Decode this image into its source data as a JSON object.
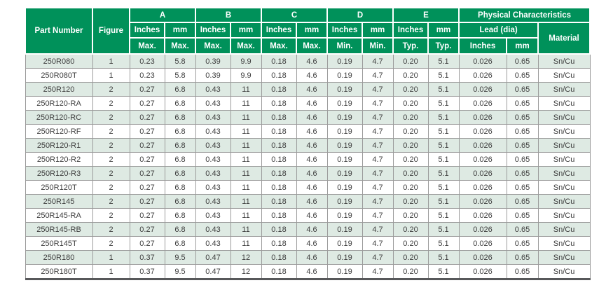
{
  "colors": {
    "header_green": "#00915a",
    "header_text": "#ffffff",
    "row_tint": "#deeae3",
    "row_white": "#ffffff",
    "data_text": "#3d3d3d",
    "grid_line": "#9b9b9b",
    "bottom_border": "#57585a"
  },
  "header": {
    "part_number": "Part Number",
    "figure": "Figure",
    "groups": [
      {
        "label": "A",
        "sub": [
          "Inches",
          "mm"
        ],
        "spec": [
          "Max.",
          "Max."
        ]
      },
      {
        "label": "B",
        "sub": [
          "Inches",
          "mm"
        ],
        "spec": [
          "Max.",
          "Max."
        ]
      },
      {
        "label": "C",
        "sub": [
          "Inches",
          "mm"
        ],
        "spec": [
          "Max.",
          "Max."
        ]
      },
      {
        "label": "D",
        "sub": [
          "Inches",
          "mm"
        ],
        "spec": [
          "Min.",
          "Min."
        ]
      },
      {
        "label": "E",
        "sub": [
          "Inches",
          "mm"
        ],
        "spec": [
          "Typ.",
          "Typ."
        ]
      }
    ],
    "physical": {
      "label": "Physical Characteristics",
      "lead": "Lead (dia)",
      "lead_sub": [
        "Inches",
        "mm"
      ],
      "material": "Material"
    }
  },
  "rows": [
    {
      "part": "250R080",
      "figure": "1",
      "values": [
        "0.23",
        "5.8",
        "0.39",
        "9.9",
        "0.18",
        "4.6",
        "0.19",
        "4.7",
        "0.20",
        "5.1",
        "0.026",
        "0.65",
        "Sn/Cu"
      ]
    },
    {
      "part": "250R080T",
      "figure": "1",
      "values": [
        "0.23",
        "5.8",
        "0.39",
        "9.9",
        "0.18",
        "4.6",
        "0.19",
        "4.7",
        "0.20",
        "5.1",
        "0.026",
        "0.65",
        "Sn/Cu"
      ]
    },
    {
      "part": "250R120",
      "figure": "2",
      "values": [
        "0.27",
        "6.8",
        "0.43",
        "11",
        "0.18",
        "4.6",
        "0.19",
        "4.7",
        "0.20",
        "5.1",
        "0.026",
        "0.65",
        "Sn/Cu"
      ]
    },
    {
      "part": "250R120-RA",
      "figure": "2",
      "values": [
        "0.27",
        "6.8",
        "0.43",
        "11",
        "0.18",
        "4.6",
        "0.19",
        "4.7",
        "0.20",
        "5.1",
        "0.026",
        "0.65",
        "Sn/Cu"
      ]
    },
    {
      "part": "250R120-RC",
      "figure": "2",
      "values": [
        "0.27",
        "6.8",
        "0.43",
        "11",
        "0.18",
        "4.6",
        "0.19",
        "4.7",
        "0.20",
        "5.1",
        "0.026",
        "0.65",
        "Sn/Cu"
      ]
    },
    {
      "part": "250R120-RF",
      "figure": "2",
      "values": [
        "0.27",
        "6.8",
        "0.43",
        "11",
        "0.18",
        "4.6",
        "0.19",
        "4.7",
        "0.20",
        "5.1",
        "0.026",
        "0.65",
        "Sn/Cu"
      ]
    },
    {
      "part": "250R120-R1",
      "figure": "2",
      "values": [
        "0.27",
        "6.8",
        "0.43",
        "11",
        "0.18",
        "4.6",
        "0.19",
        "4.7",
        "0.20",
        "5.1",
        "0.026",
        "0.65",
        "Sn/Cu"
      ]
    },
    {
      "part": "250R120-R2",
      "figure": "2",
      "values": [
        "0.27",
        "6.8",
        "0.43",
        "11",
        "0.18",
        "4.6",
        "0.19",
        "4.7",
        "0.20",
        "5.1",
        "0.026",
        "0.65",
        "Sn/Cu"
      ]
    },
    {
      "part": "250R120-R3",
      "figure": "2",
      "values": [
        "0.27",
        "6.8",
        "0.43",
        "11",
        "0.18",
        "4.6",
        "0.19",
        "4.7",
        "0.20",
        "5.1",
        "0.026",
        "0.65",
        "Sn/Cu"
      ]
    },
    {
      "part": "250R120T",
      "figure": "2",
      "values": [
        "0.27",
        "6.8",
        "0.43",
        "11",
        "0.18",
        "4.6",
        "0.19",
        "4.7",
        "0.20",
        "5.1",
        "0.026",
        "0.65",
        "Sn/Cu"
      ]
    },
    {
      "part": "250R145",
      "figure": "2",
      "values": [
        "0.27",
        "6.8",
        "0.43",
        "11",
        "0.18",
        "4.6",
        "0.19",
        "4.7",
        "0.20",
        "5.1",
        "0.026",
        "0.65",
        "Sn/Cu"
      ]
    },
    {
      "part": "250R145-RA",
      "figure": "2",
      "values": [
        "0.27",
        "6.8",
        "0.43",
        "11",
        "0.18",
        "4.6",
        "0.19",
        "4.7",
        "0.20",
        "5.1",
        "0.026",
        "0.65",
        "Sn/Cu"
      ]
    },
    {
      "part": "250R145-RB",
      "figure": "2",
      "values": [
        "0.27",
        "6.8",
        "0.43",
        "11",
        "0.18",
        "4.6",
        "0.19",
        "4.7",
        "0.20",
        "5.1",
        "0.026",
        "0.65",
        "Sn/Cu"
      ]
    },
    {
      "part": "250R145T",
      "figure": "2",
      "values": [
        "0.27",
        "6.8",
        "0.43",
        "11",
        "0.18",
        "4.6",
        "0.19",
        "4.7",
        "0.20",
        "5.1",
        "0.026",
        "0.65",
        "Sn/Cu"
      ]
    },
    {
      "part": "250R180",
      "figure": "1",
      "values": [
        "0.37",
        "9.5",
        "0.47",
        "12",
        "0.18",
        "4.6",
        "0.19",
        "4.7",
        "0.20",
        "5.1",
        "0.026",
        "0.65",
        "Sn/Cu"
      ]
    },
    {
      "part": "250R180T",
      "figure": "1",
      "values": [
        "0.37",
        "9.5",
        "0.47",
        "12",
        "0.18",
        "4.6",
        "0.19",
        "4.7",
        "0.20",
        "5.1",
        "0.026",
        "0.65",
        "Sn/Cu"
      ]
    }
  ]
}
